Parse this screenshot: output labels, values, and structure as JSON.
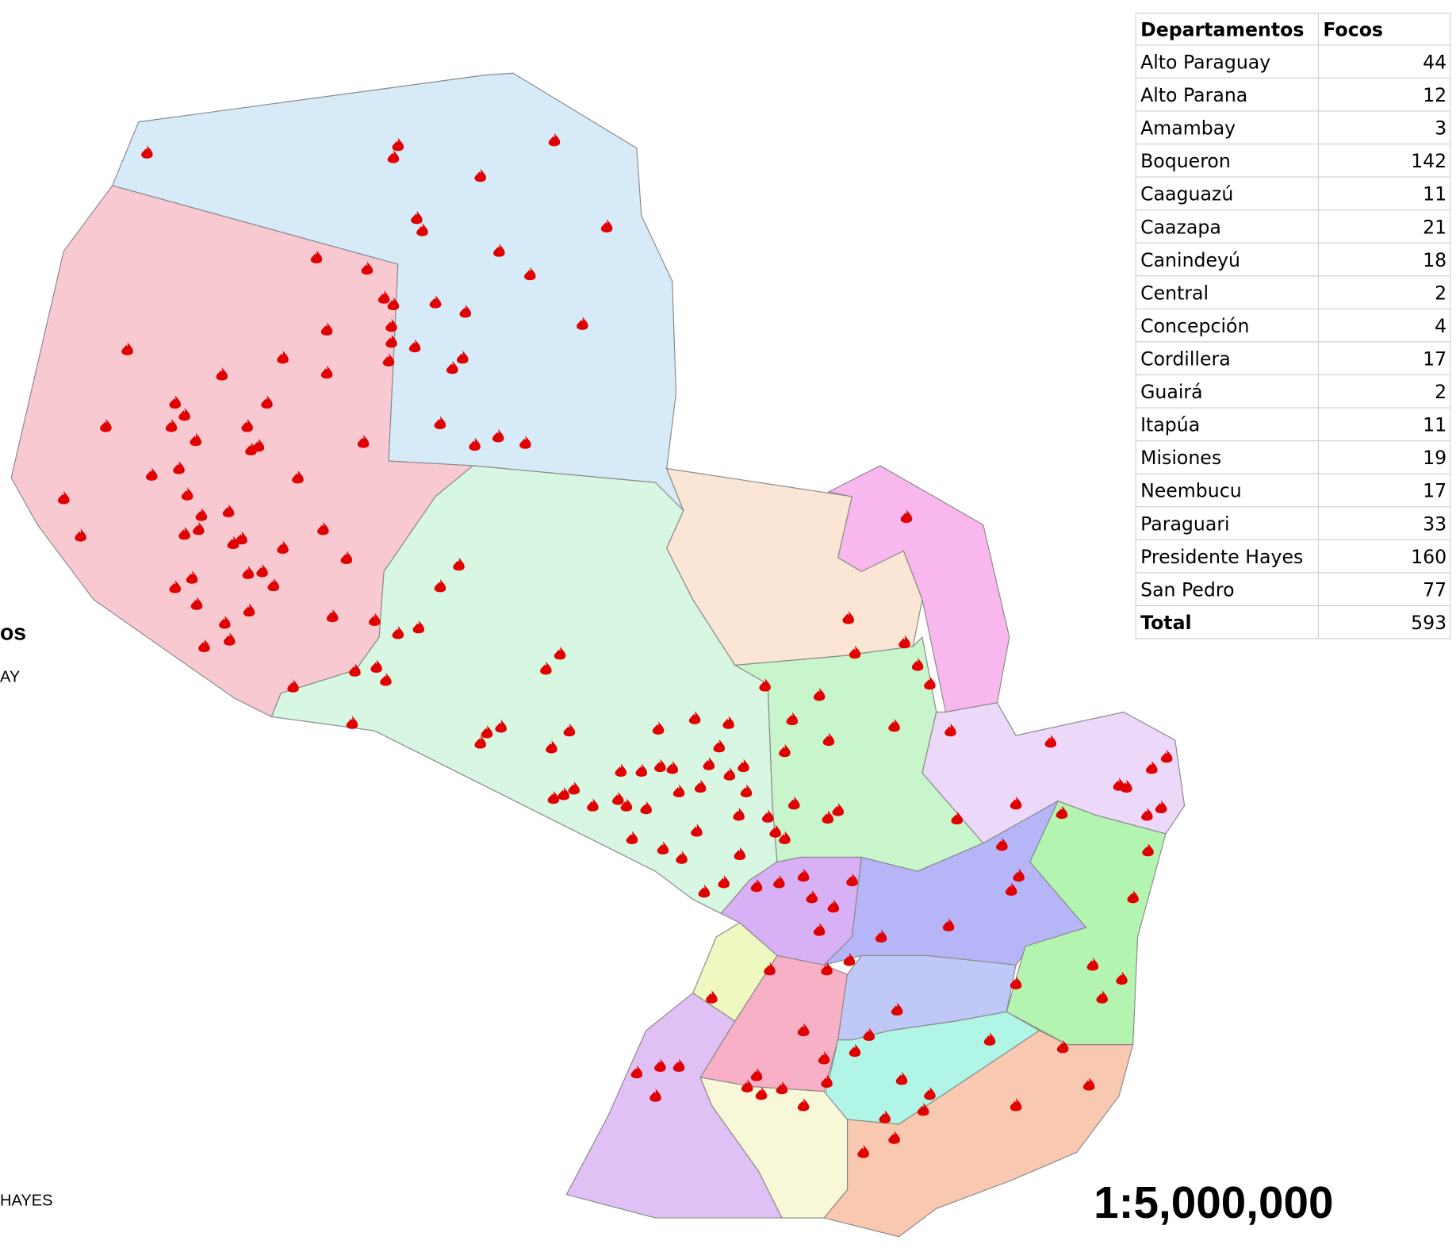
{
  "table": {
    "header": [
      "Departamentos",
      "Focos"
    ],
    "rows": [
      [
        "Alto Paraguay",
        44
      ],
      [
        "Alto Parana",
        12
      ],
      [
        "Amambay",
        3
      ],
      [
        "Boqueron",
        142
      ],
      [
        "Caaguazú",
        11
      ],
      [
        "Caazapa",
        21
      ],
      [
        "Canindeyú",
        18
      ],
      [
        "Central",
        2
      ],
      [
        "Concepción",
        4
      ],
      [
        "Cordillera",
        17
      ],
      [
        "Guairá",
        2
      ],
      [
        "Itapúa",
        11
      ],
      [
        "Misiones",
        19
      ],
      [
        "Neembucu",
        17
      ],
      [
        "Paraguari",
        33
      ],
      [
        "Presidente Hayes",
        160
      ],
      [
        "San Pedro",
        77
      ]
    ],
    "total": [
      "Total",
      593
    ]
  },
  "scale": "1:5,000,000",
  "legend": {
    "title": "os",
    "items": [
      "AY",
      "HAYES"
    ]
  }
}
